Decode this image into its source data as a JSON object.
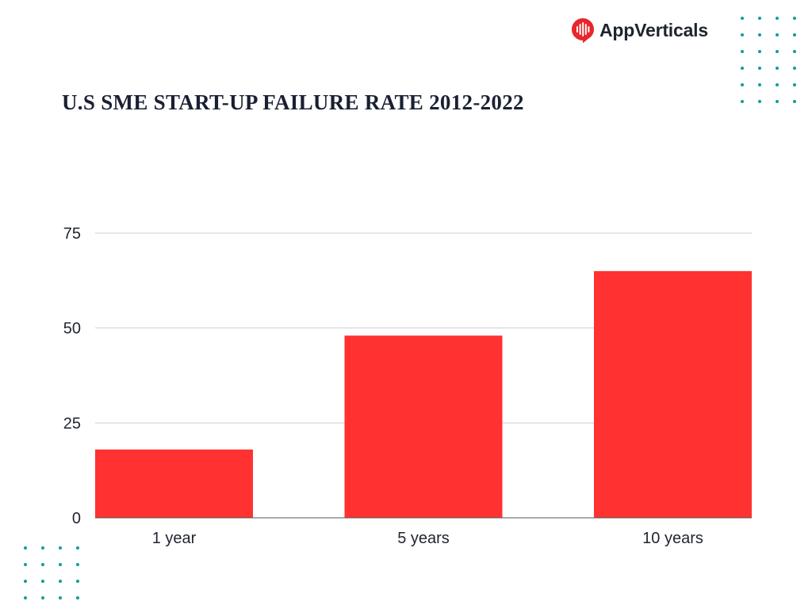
{
  "brand": {
    "name": "AppVerticals",
    "icon": "app-verticals-logo-icon",
    "icon_color": "#e8262b"
  },
  "decoration": {
    "dot_color": "#0f9e9a"
  },
  "chart_data": {
    "type": "bar",
    "title": "U.S SME START-UP FAILURE RATE 2012-2022",
    "categories": [
      "1 year",
      "5 years",
      "10 years"
    ],
    "values": [
      18,
      48,
      65
    ],
    "xlabel": "",
    "ylabel": "",
    "ylim": [
      0,
      75
    ],
    "yticks": [
      0,
      25,
      50,
      75
    ],
    "grid": true,
    "legend": "none",
    "bar_color": "#ff3131",
    "grid_color": "#cfcfcf",
    "axis_color": "#555555"
  }
}
